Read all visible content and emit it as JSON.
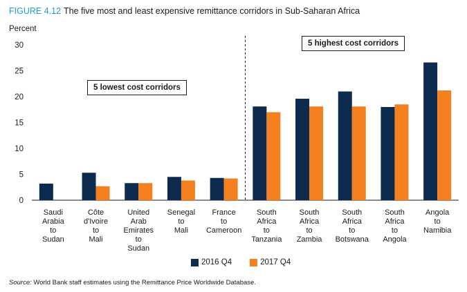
{
  "figure": {
    "label": "FIGURE 4.12",
    "title": "The five most and least expensive remittance corridors in Sub-Saharan Africa",
    "unit": "Percent",
    "source_label": "Source:",
    "source_text": "World Bank staff estimates using the Remittance Price Worldwide Database."
  },
  "callouts": {
    "lowest": "5 lowest cost corridors",
    "highest": "5 highest cost corridors"
  },
  "colors": {
    "series_2016": "#0d2b4e",
    "series_2017": "#f4801f"
  },
  "chart_data": {
    "type": "bar",
    "title": "The five most and least expensive remittance corridors in Sub-Saharan Africa",
    "ylabel": "Percent",
    "ylim": [
      0,
      30
    ],
    "yticks": [
      0,
      5,
      10,
      15,
      20,
      25,
      30
    ],
    "grid": false,
    "legend_position": "bottom",
    "categories": [
      [
        "Saudi",
        "Arabia",
        "to",
        "Sudan"
      ],
      [
        "Côte",
        "d'Ivoire",
        "to",
        "Mali"
      ],
      [
        "United",
        "Arab",
        "Emirates",
        "to",
        "Sudan"
      ],
      [
        "Senegal",
        "to",
        "Mali"
      ],
      [
        "France",
        "to",
        "Cameroon"
      ],
      [
        "South",
        "Africa",
        "to",
        "Tanzania"
      ],
      [
        "South",
        "Africa",
        "to",
        "Zambia"
      ],
      [
        "South",
        "Africa",
        "to",
        "Botswana"
      ],
      [
        "South",
        "Africa",
        "to",
        "Angola"
      ],
      [
        "Angola",
        "to",
        "Namibia"
      ]
    ],
    "series": [
      {
        "name": "2016 Q4",
        "values": [
          3.2,
          5.3,
          3.3,
          4.5,
          4.3,
          18.1,
          19.6,
          21.0,
          18.0,
          26.6
        ]
      },
      {
        "name": "2017 Q4",
        "values": [
          null,
          2.7,
          3.3,
          3.8,
          4.2,
          17.0,
          18.1,
          18.1,
          18.5,
          21.2
        ]
      }
    ]
  }
}
